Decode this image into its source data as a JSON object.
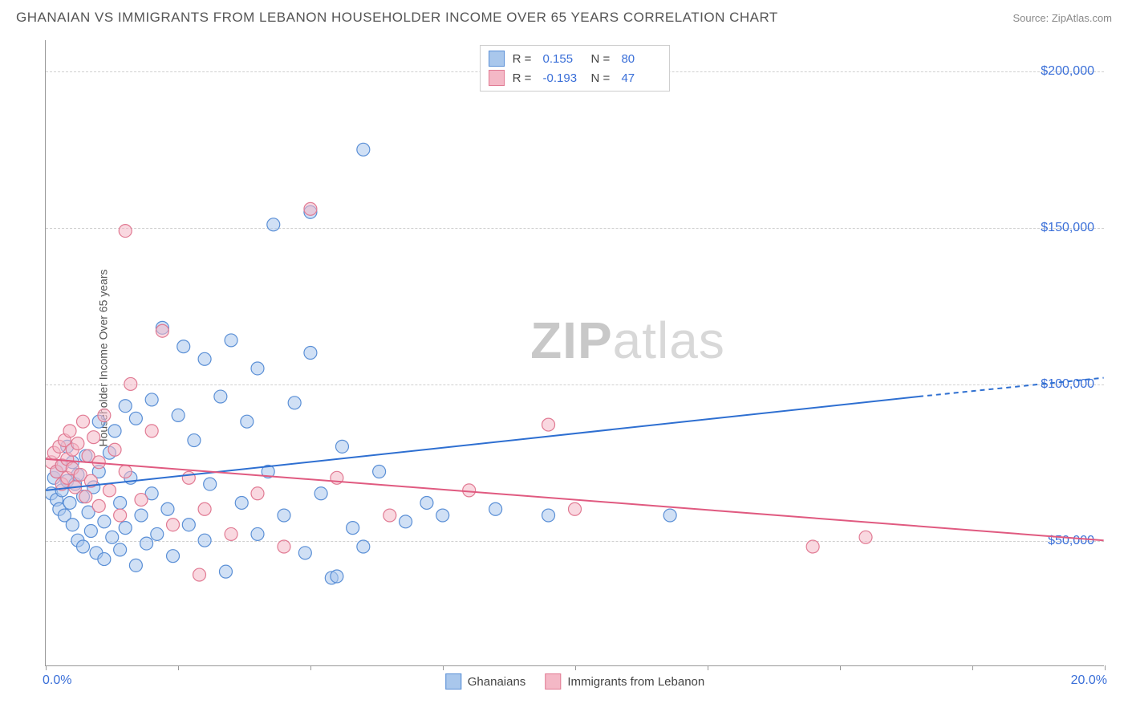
{
  "title": "GHANAIAN VS IMMIGRANTS FROM LEBANON HOUSEHOLDER INCOME OVER 65 YEARS CORRELATION CHART",
  "source": "Source: ZipAtlas.com",
  "watermark_bold": "ZIP",
  "watermark_light": "atlas",
  "chart": {
    "type": "scatter",
    "ylabel": "Householder Income Over 65 years",
    "xlim": [
      0.0,
      20.0
    ],
    "ylim": [
      10000,
      210000
    ],
    "xtick_positions": [
      0,
      2.5,
      5.0,
      7.5,
      10.0,
      12.5,
      15.0,
      17.5,
      20.0
    ],
    "xlabel_min": "0.0%",
    "xlabel_max": "20.0%",
    "yticks": [
      {
        "v": 50000,
        "label": "$50,000"
      },
      {
        "v": 100000,
        "label": "$100,000"
      },
      {
        "v": 150000,
        "label": "$150,000"
      },
      {
        "v": 200000,
        "label": "$200,000"
      }
    ],
    "grid_color": "#d0d0d0",
    "background_color": "#ffffff",
    "marker_radius": 8,
    "marker_opacity": 0.55,
    "line_width": 2,
    "series": [
      {
        "name": "Ghanaians",
        "fill": "#a9c7ec",
        "stroke": "#5a8fd6",
        "line_color": "#2e6fd1",
        "R": "0.155",
        "N": "80",
        "trend": {
          "x1": 0.0,
          "y1": 66000,
          "x2_solid": 16.5,
          "y2_solid": 96000,
          "x2": 20.0,
          "y2": 102000
        },
        "points": [
          [
            0.1,
            65000
          ],
          [
            0.15,
            70000
          ],
          [
            0.2,
            63000
          ],
          [
            0.2,
            72000
          ],
          [
            0.25,
            60000
          ],
          [
            0.3,
            66000
          ],
          [
            0.3,
            74000
          ],
          [
            0.35,
            58000
          ],
          [
            0.4,
            80000
          ],
          [
            0.4,
            69000
          ],
          [
            0.45,
            62000
          ],
          [
            0.5,
            55000
          ],
          [
            0.5,
            75000
          ],
          [
            0.55,
            68000
          ],
          [
            0.6,
            50000
          ],
          [
            0.6,
            71000
          ],
          [
            0.7,
            48000
          ],
          [
            0.7,
            64000
          ],
          [
            0.75,
            77000
          ],
          [
            0.8,
            59000
          ],
          [
            0.85,
            53000
          ],
          [
            0.9,
            67000
          ],
          [
            0.95,
            46000
          ],
          [
            1.0,
            72000
          ],
          [
            1.0,
            88000
          ],
          [
            1.1,
            56000
          ],
          [
            1.1,
            44000
          ],
          [
            1.2,
            78000
          ],
          [
            1.25,
            51000
          ],
          [
            1.3,
            85000
          ],
          [
            1.4,
            62000
          ],
          [
            1.4,
            47000
          ],
          [
            1.5,
            93000
          ],
          [
            1.5,
            54000
          ],
          [
            1.6,
            70000
          ],
          [
            1.7,
            42000
          ],
          [
            1.7,
            89000
          ],
          [
            1.8,
            58000
          ],
          [
            1.9,
            49000
          ],
          [
            2.0,
            95000
          ],
          [
            2.0,
            65000
          ],
          [
            2.1,
            52000
          ],
          [
            2.2,
            118000
          ],
          [
            2.3,
            60000
          ],
          [
            2.4,
            45000
          ],
          [
            2.5,
            90000
          ],
          [
            2.6,
            112000
          ],
          [
            2.7,
            55000
          ],
          [
            2.8,
            82000
          ],
          [
            3.0,
            108000
          ],
          [
            3.0,
            50000
          ],
          [
            3.1,
            68000
          ],
          [
            3.3,
            96000
          ],
          [
            3.4,
            40000
          ],
          [
            3.5,
            114000
          ],
          [
            3.7,
            62000
          ],
          [
            3.8,
            88000
          ],
          [
            4.0,
            52000
          ],
          [
            4.0,
            105000
          ],
          [
            4.2,
            72000
          ],
          [
            4.3,
            151000
          ],
          [
            4.5,
            58000
          ],
          [
            4.7,
            94000
          ],
          [
            4.9,
            46000
          ],
          [
            5.0,
            110000
          ],
          [
            5.0,
            155000
          ],
          [
            5.2,
            65000
          ],
          [
            5.4,
            38000
          ],
          [
            5.5,
            38500
          ],
          [
            5.6,
            80000
          ],
          [
            5.8,
            54000
          ],
          [
            6.0,
            175000
          ],
          [
            6.0,
            48000
          ],
          [
            6.3,
            72000
          ],
          [
            6.8,
            56000
          ],
          [
            7.2,
            62000
          ],
          [
            7.5,
            58000
          ],
          [
            8.5,
            60000
          ],
          [
            9.5,
            58000
          ],
          [
            11.8,
            58000
          ]
        ]
      },
      {
        "name": "Immigrants from Lebanon",
        "fill": "#f4b8c6",
        "stroke": "#e17a93",
        "line_color": "#e05a80",
        "R": "-0.193",
        "N": "47",
        "trend": {
          "x1": 0.0,
          "y1": 76000,
          "x2_solid": 20.0,
          "y2_solid": 50000,
          "x2": 20.0,
          "y2": 50000
        },
        "points": [
          [
            0.1,
            75000
          ],
          [
            0.15,
            78000
          ],
          [
            0.2,
            72000
          ],
          [
            0.25,
            80000
          ],
          [
            0.3,
            74000
          ],
          [
            0.3,
            68000
          ],
          [
            0.35,
            82000
          ],
          [
            0.4,
            76000
          ],
          [
            0.4,
            70000
          ],
          [
            0.45,
            85000
          ],
          [
            0.5,
            73000
          ],
          [
            0.5,
            79000
          ],
          [
            0.55,
            67000
          ],
          [
            0.6,
            81000
          ],
          [
            0.65,
            71000
          ],
          [
            0.7,
            88000
          ],
          [
            0.75,
            64000
          ],
          [
            0.8,
            77000
          ],
          [
            0.85,
            69000
          ],
          [
            0.9,
            83000
          ],
          [
            1.0,
            61000
          ],
          [
            1.0,
            75000
          ],
          [
            1.1,
            90000
          ],
          [
            1.2,
            66000
          ],
          [
            1.3,
            79000
          ],
          [
            1.4,
            58000
          ],
          [
            1.5,
            72000
          ],
          [
            1.5,
            149000
          ],
          [
            1.6,
            100000
          ],
          [
            1.8,
            63000
          ],
          [
            2.0,
            85000
          ],
          [
            2.2,
            117000
          ],
          [
            2.4,
            55000
          ],
          [
            2.7,
            70000
          ],
          [
            2.9,
            39000
          ],
          [
            3.0,
            60000
          ],
          [
            3.5,
            52000
          ],
          [
            4.0,
            65000
          ],
          [
            4.5,
            48000
          ],
          [
            5.0,
            156000
          ],
          [
            5.5,
            70000
          ],
          [
            6.5,
            58000
          ],
          [
            8.0,
            66000
          ],
          [
            9.5,
            87000
          ],
          [
            10.0,
            60000
          ],
          [
            14.5,
            48000
          ],
          [
            15.5,
            51000
          ]
        ]
      }
    ]
  }
}
